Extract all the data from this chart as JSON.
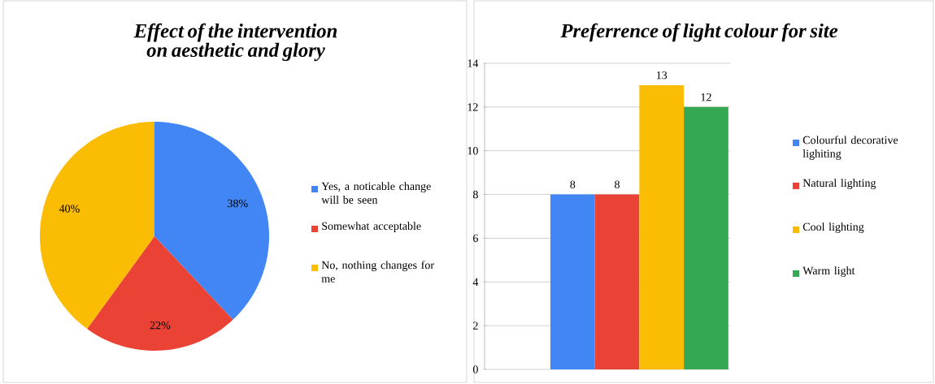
{
  "chart_data": [
    {
      "type": "pie",
      "title": "Effect of the intervention on aesthetic and glory",
      "categories": [
        "Yes, a noticable change will be seen",
        "Somewhat acceptable",
        "No, nothing changes for me"
      ],
      "values": [
        38,
        22,
        40
      ],
      "colors": [
        "#4285f4",
        "#ea4335",
        "#fbbc04"
      ],
      "value_labels": [
        "38%",
        "22%",
        "40%"
      ],
      "legend": "right"
    },
    {
      "type": "bar",
      "title": "Preferrence of light colour for site",
      "categories": [
        null
      ],
      "series": [
        {
          "name": "Colourful decorative lighiting",
          "color": "#4285f4",
          "values": [
            8
          ]
        },
        {
          "name": "Natural lighting",
          "color": "#ea4335",
          "values": [
            8
          ]
        },
        {
          "name": "Cool lighting",
          "color": "#fbbc04",
          "values": [
            13
          ]
        },
        {
          "name": "Warm light",
          "color": "#34a853",
          "values": [
            12
          ]
        }
      ],
      "ylim": [
        0,
        14
      ],
      "yticks": [
        0,
        2,
        4,
        6,
        8,
        10,
        12,
        14
      ],
      "grid": "y",
      "data_labels": true,
      "legend": "right"
    }
  ]
}
